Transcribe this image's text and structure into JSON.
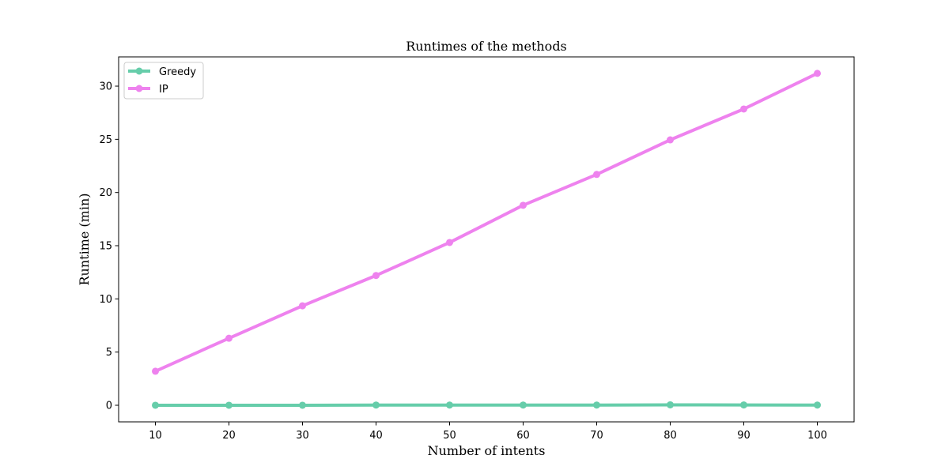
{
  "chart_data": {
    "type": "line",
    "title": "Runtimes of the methods",
    "xlabel": "Number of intents",
    "ylabel": "Runtime (min)",
    "x": [
      10,
      20,
      30,
      40,
      50,
      60,
      70,
      80,
      90,
      100
    ],
    "xlim": [
      5,
      105
    ],
    "ylim": [
      -1.56,
      32.75
    ],
    "xticks": [
      "10",
      "20",
      "30",
      "40",
      "50",
      "60",
      "70",
      "80",
      "90",
      "100"
    ],
    "yticks": [
      "0",
      "5",
      "10",
      "15",
      "20",
      "25",
      "30"
    ],
    "grid": false,
    "legend_position": "top-left",
    "series": [
      {
        "name": "Greedy",
        "color": "#66cdaa",
        "values": [
          0.0,
          0.0,
          0.0,
          0.02,
          0.02,
          0.02,
          0.02,
          0.04,
          0.03,
          0.02
        ]
      },
      {
        "name": "IP",
        "color": "#ee82ee",
        "values": [
          3.2,
          6.3,
          9.35,
          12.2,
          15.3,
          18.8,
          21.7,
          24.95,
          27.85,
          31.2
        ]
      }
    ]
  }
}
